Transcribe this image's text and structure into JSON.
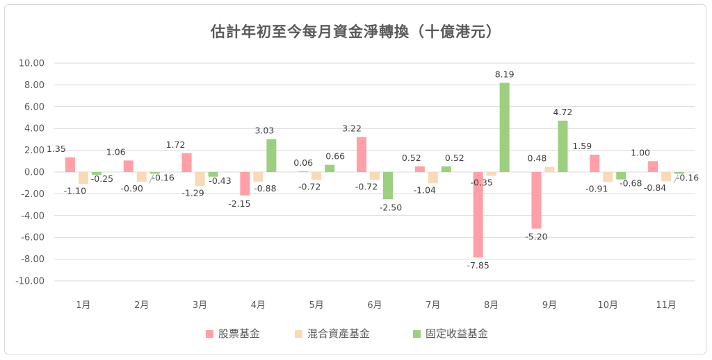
{
  "chart_data": {
    "type": "bar",
    "title": "估計年初至今每月資金淨轉換（十億港元）",
    "categories": [
      "1月",
      "2月",
      "3月",
      "4月",
      "5月",
      "6月",
      "7月",
      "8月",
      "9月",
      "10月",
      "11月"
    ],
    "series": [
      {
        "name": "股票基金",
        "color": "#ff9fa7",
        "values": [
          1.35,
          1.06,
          1.72,
          -2.15,
          0.06,
          3.22,
          0.52,
          -7.85,
          -5.2,
          1.59,
          1.0
        ]
      },
      {
        "name": "混合資產基金",
        "color": "#f8d9b8",
        "values": [
          -1.1,
          -0.9,
          -1.29,
          -0.88,
          -0.72,
          -0.72,
          -1.04,
          -0.35,
          0.48,
          -0.91,
          -0.84
        ]
      },
      {
        "name": "固定收益基金",
        "color": "#9ccf7f",
        "values": [
          -0.25,
          -0.16,
          -0.43,
          3.03,
          0.66,
          -2.5,
          0.52,
          8.19,
          4.72,
          -0.68,
          -0.16
        ]
      }
    ],
    "value_labels": [
      [
        "1.35",
        "1.06",
        "1.72",
        "-2.15",
        "0.06",
        "3.22",
        "0.52",
        "-7.85",
        "-5.20",
        "1.59",
        "1.00"
      ],
      [
        "-1.10",
        "-0.90",
        "-1.29",
        "-0.88",
        "-0.72",
        "-0.72",
        "-1.04",
        "-0.35",
        "0.48",
        "-0.91",
        "-0.84"
      ],
      [
        "-0.25",
        "-0.16",
        "-0.43",
        "3.03",
        "0.66",
        "-2.50",
        "0.52",
        "8.19",
        "4.72",
        "-0.68",
        "-0.16"
      ]
    ],
    "ylim": [
      -10,
      10
    ],
    "yticks": [
      "10.00",
      "8.00",
      "6.00",
      "4.00",
      "2.00",
      "0.00",
      "-2.00",
      "-4.00",
      "-6.00",
      "-8.00",
      "-10.00"
    ],
    "grid": true,
    "legend": "bottom"
  }
}
